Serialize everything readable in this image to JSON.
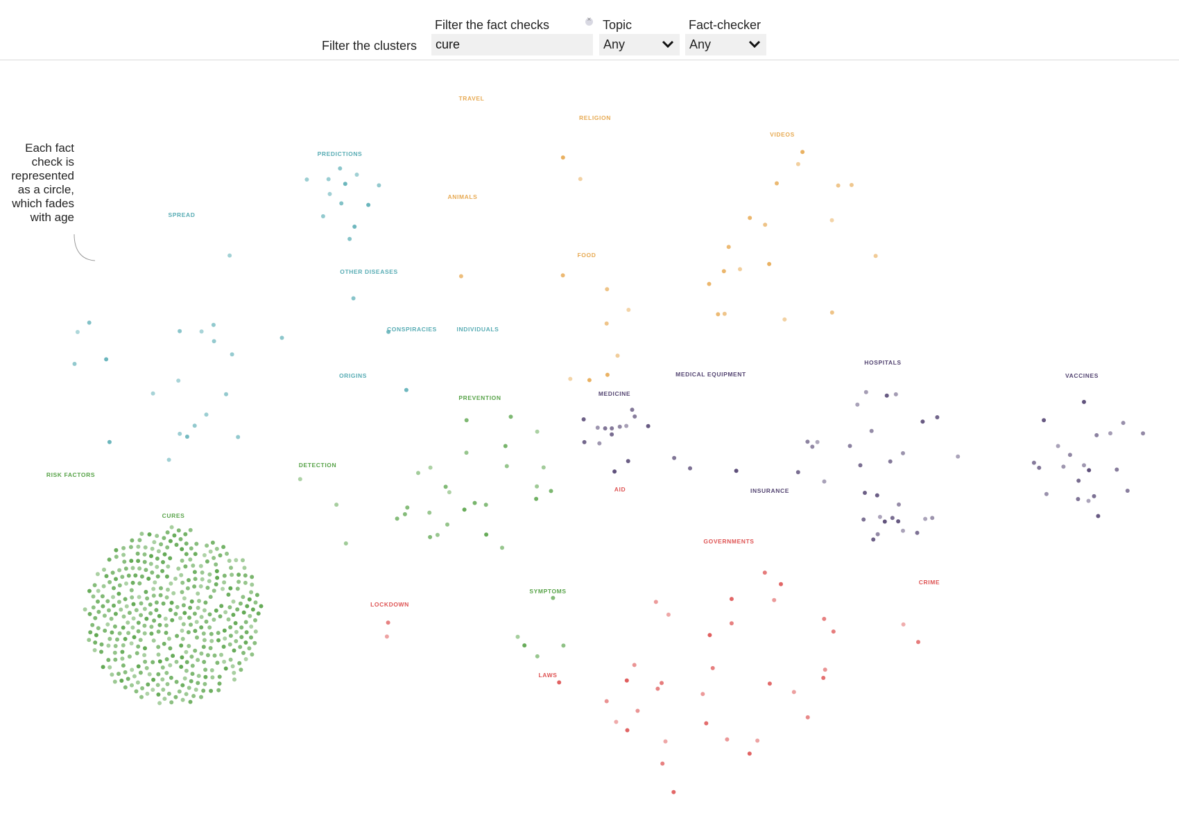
{
  "header": {
    "filter_clusters_label": "Filter the clusters",
    "filter_factchecks_label": "Filter the fact checks",
    "search": {
      "value": "cure",
      "placeholder": ""
    },
    "topic": {
      "label": "Topic",
      "selected": "Any"
    },
    "factchecker": {
      "label": "Fact-checker",
      "selected": "Any"
    }
  },
  "annotation": "Each fact check is represented as a circle, which fades with age",
  "colors": {
    "teal": "#4fa8b0",
    "amber": "#e6a54a",
    "green": "#4f9e3f",
    "purple": "#4a3a6a",
    "red": "#dc4a4a"
  },
  "chart_data": {
    "type": "scatter",
    "description_of_encoding": "clustered dot plot of fact checks",
    "clusters": [
      {
        "name": "SPREAD",
        "color": "teal",
        "highlighted": 21
      },
      {
        "name": "PREDICTIONS",
        "color": "teal",
        "highlighted": 12
      },
      {
        "name": "OTHER DISEASES",
        "color": "teal",
        "highlighted": 2
      },
      {
        "name": "CONSPIRACIES",
        "color": "teal",
        "highlighted": 1
      },
      {
        "name": "INDIVIDUALS",
        "color": "teal",
        "highlighted": 0
      },
      {
        "name": "ORIGINS",
        "color": "teal",
        "highlighted": 0
      },
      {
        "name": "TRAVEL",
        "color": "amber",
        "highlighted": 0
      },
      {
        "name": "RELIGION",
        "color": "amber",
        "highlighted": 2
      },
      {
        "name": "ANIMALS",
        "color": "amber",
        "highlighted": 1
      },
      {
        "name": "FOOD",
        "color": "amber",
        "highlighted": 8
      },
      {
        "name": "VIDEOS",
        "color": "amber",
        "highlighted": 18
      },
      {
        "name": "RISK FACTORS",
        "color": "green",
        "highlighted": 0
      },
      {
        "name": "CURES",
        "color": "green",
        "highlighted": 420
      },
      {
        "name": "DETECTION",
        "color": "green",
        "highlighted": 3
      },
      {
        "name": "PREVENTION",
        "color": "green",
        "highlighted": 26
      },
      {
        "name": "SYMPTOMS",
        "color": "green",
        "highlighted": 5
      },
      {
        "name": "MEDICINE",
        "color": "purple",
        "highlighted": 14
      },
      {
        "name": "MEDICAL EQUIPMENT",
        "color": "purple",
        "highlighted": 3
      },
      {
        "name": "HOSPITALS",
        "color": "purple",
        "highlighted": 31
      },
      {
        "name": "VACCINES",
        "color": "purple",
        "highlighted": 21
      },
      {
        "name": "INSURANCE",
        "color": "purple",
        "highlighted": 0
      },
      {
        "name": "AID",
        "color": "red",
        "highlighted": 0
      },
      {
        "name": "GOVERNMENTS",
        "color": "red",
        "highlighted": 32
      },
      {
        "name": "CRIME",
        "color": "red",
        "highlighted": 2
      },
      {
        "name": "LOCKDOWN",
        "color": "red",
        "highlighted": 2
      },
      {
        "name": "LAWS",
        "color": "red",
        "highlighted": 1
      }
    ]
  }
}
